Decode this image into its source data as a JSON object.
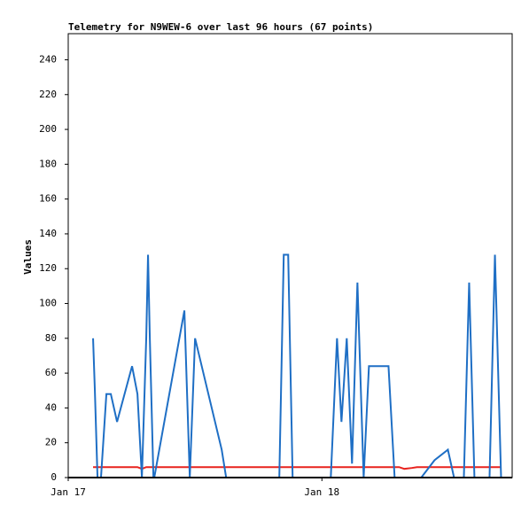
{
  "chart_data": {
    "type": "line",
    "title": "Telemetry for N9WEW-6 over last 96 hours (67 points)",
    "y_label": "Values",
    "xlim": [
      0,
      42
    ],
    "xticks": [
      {
        "value": 0,
        "label": "Jan 17"
      },
      {
        "value": 24,
        "label": "Jan 18"
      }
    ],
    "ylim": [
      0,
      255
    ],
    "yticks": [
      0,
      20,
      40,
      60,
      80,
      100,
      120,
      140,
      160,
      180,
      200,
      220,
      240
    ],
    "series": [
      {
        "color": "#1f6fc5",
        "x": [
          2.35,
          2.52,
          2.77,
          3.1,
          3.61,
          4.03,
          4.62,
          6.04,
          6.55,
          6.97,
          7.38,
          7.55,
          7.72,
          8.06,
          8.14,
          10.99,
          11.5,
          12.0,
          14.52,
          14.94,
          19.97,
          20.39,
          20.81,
          21.23,
          24.84,
          25.43,
          25.85,
          26.35,
          26.85,
          27.36,
          27.95,
          28.45,
          30.3,
          30.88,
          33.4,
          34.66,
          35.92,
          36.5,
          37.43,
          37.93,
          38.43,
          39.86,
          40.37,
          40.95
        ],
        "values": [
          80,
          50,
          0,
          0,
          48,
          48,
          32,
          64,
          48,
          0,
          80,
          128,
          80,
          0,
          0,
          96,
          0,
          80,
          16,
          0,
          0,
          128,
          128,
          0,
          0,
          80,
          32,
          80,
          8,
          112,
          0,
          64,
          64,
          0,
          0,
          10,
          16,
          0,
          0,
          112,
          0,
          0,
          128,
          0
        ]
      },
      {
        "color": "#e8231e",
        "x": [
          2.35,
          6.55,
          6.97,
          7.38,
          31.3,
          31.8,
          32.5,
          33.0,
          40.95
        ],
        "values": [
          6,
          6,
          5,
          6,
          6,
          5,
          5.5,
          6,
          6
        ]
      }
    ]
  }
}
